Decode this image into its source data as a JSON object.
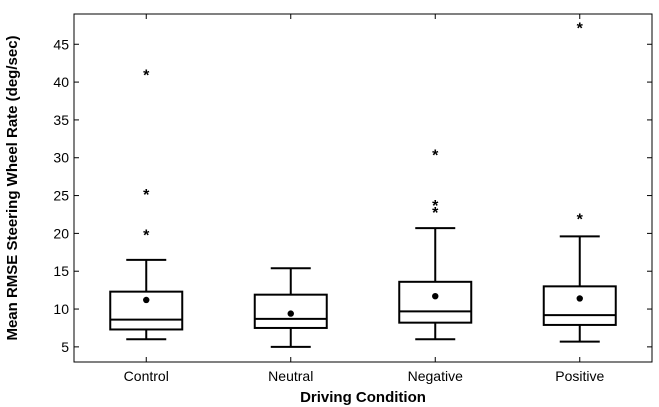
{
  "chart_data": {
    "type": "box",
    "xlabel": "Driving Condition",
    "ylabel": "Mean RMSE Steering Wheel Rate (deg/sec)",
    "ylim": [
      3,
      49
    ],
    "yticks": [
      5,
      10,
      15,
      20,
      25,
      30,
      35,
      40,
      45
    ],
    "grid": false,
    "categories": [
      "Control",
      "Neutral",
      "Negative",
      "Positive"
    ],
    "boxes": [
      {
        "category": "Control",
        "whisker_low": 6.0,
        "q1": 7.3,
        "median": 8.6,
        "q3": 12.3,
        "whisker_high": 16.5,
        "mean": 11.2,
        "outliers": [
          20.1,
          25.5,
          41.3
        ]
      },
      {
        "category": "Neutral",
        "whisker_low": 5.0,
        "q1": 7.5,
        "median": 8.7,
        "q3": 11.9,
        "whisker_high": 15.4,
        "mean": 9.4,
        "outliers": []
      },
      {
        "category": "Negative",
        "whisker_low": 6.0,
        "q1": 8.2,
        "median": 9.7,
        "q3": 13.6,
        "whisker_high": 20.7,
        "mean": 11.7,
        "outliers": [
          23.1,
          24.0,
          30.7
        ]
      },
      {
        "category": "Positive",
        "whisker_low": 5.7,
        "q1": 7.9,
        "median": 9.2,
        "q3": 13.0,
        "whisker_high": 19.6,
        "mean": 11.4,
        "outliers": [
          22.2,
          47.5
        ]
      }
    ]
  }
}
